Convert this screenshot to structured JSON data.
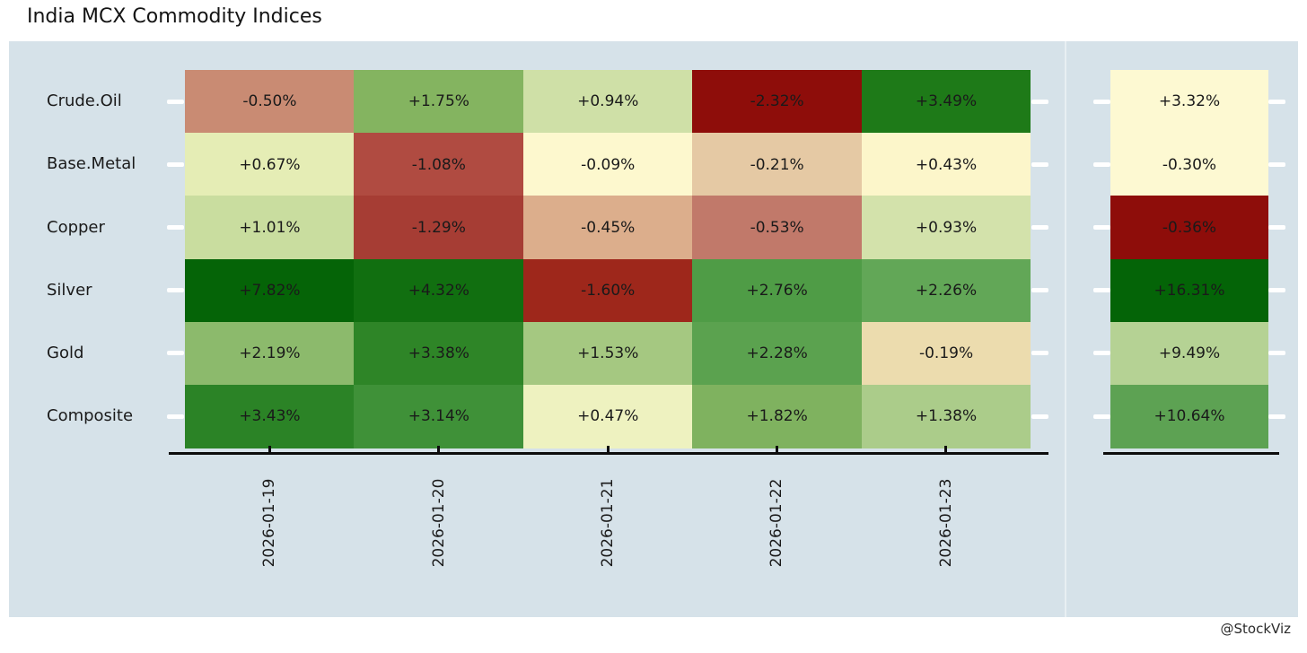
{
  "title": "India MCX Commodity Indices",
  "attribution": "@StockViz",
  "panel_background": "#d6e2e9",
  "chart_data": {
    "type": "heatmap",
    "title": "India MCX Commodity Indices",
    "colormap": "RdYlGn",
    "rows": [
      "Crude.Oil",
      "Base.Metal",
      "Copper",
      "Silver",
      "Gold",
      "Composite"
    ],
    "columns": [
      "2026-01-19",
      "2026-01-20",
      "2026-01-21",
      "2026-01-22",
      "2026-01-23"
    ],
    "values_pct": [
      [
        -0.5,
        1.75,
        0.94,
        -2.32,
        3.49
      ],
      [
        0.67,
        -1.08,
        -0.09,
        -0.21,
        0.43
      ],
      [
        1.01,
        -1.29,
        -0.45,
        -0.53,
        0.93
      ],
      [
        7.82,
        4.32,
        -1.6,
        2.76,
        2.26
      ],
      [
        2.19,
        3.38,
        1.53,
        2.28,
        -0.19
      ],
      [
        3.43,
        3.14,
        0.47,
        1.82,
        1.38
      ]
    ],
    "labels": [
      [
        "-0.50%",
        "+1.75%",
        "+0.94%",
        "-2.32%",
        "+3.49%"
      ],
      [
        "+0.67%",
        "-1.08%",
        "-0.09%",
        "-0.21%",
        "+0.43%"
      ],
      [
        "+1.01%",
        "-1.29%",
        "-0.45%",
        "-0.53%",
        "+0.93%"
      ],
      [
        "+7.82%",
        "+4.32%",
        "-1.60%",
        "+2.76%",
        "+2.26%"
      ],
      [
        "+2.19%",
        "+3.38%",
        "+1.53%",
        "+2.28%",
        "-0.19%"
      ],
      [
        "+3.43%",
        "+3.14%",
        "+0.47%",
        "+1.82%",
        "+1.38%"
      ]
    ],
    "cell_colors": [
      [
        "#c98b73",
        "#84b460",
        "#cfe0a7",
        "#8e0d0a",
        "#1e7a18"
      ],
      [
        "#e5edb5",
        "#b04b41",
        "#fdf8ce",
        "#e5c9a4",
        "#fcf6ca"
      ],
      [
        "#c9dd9f",
        "#a63d34",
        "#dcae8c",
        "#c1796a",
        "#d3e2ab"
      ],
      [
        "#056407",
        "#116f10",
        "#9e271b",
        "#4f9c46",
        "#62a757"
      ],
      [
        "#8cba6c",
        "#2e8527",
        "#a5c881",
        "#5ba24f",
        "#ecdcae"
      ],
      [
        "#2b8326",
        "#3f9138",
        "#eef2c0",
        "#7fb25f",
        "#abcc8a"
      ]
    ],
    "summary": {
      "values_pct": [
        3.32,
        -0.3,
        -0.36,
        16.31,
        9.49,
        10.64
      ],
      "labels": [
        "+3.32%",
        "-0.30%",
        "-0.36%",
        "+16.31%",
        "+9.49%",
        "+10.64%"
      ],
      "colors": [
        "#fdf9d2",
        "#fdf9d2",
        "#8e0d0a",
        "#046407",
        "#b5d294",
        "#5da253"
      ]
    },
    "attribution": "@StockViz"
  }
}
